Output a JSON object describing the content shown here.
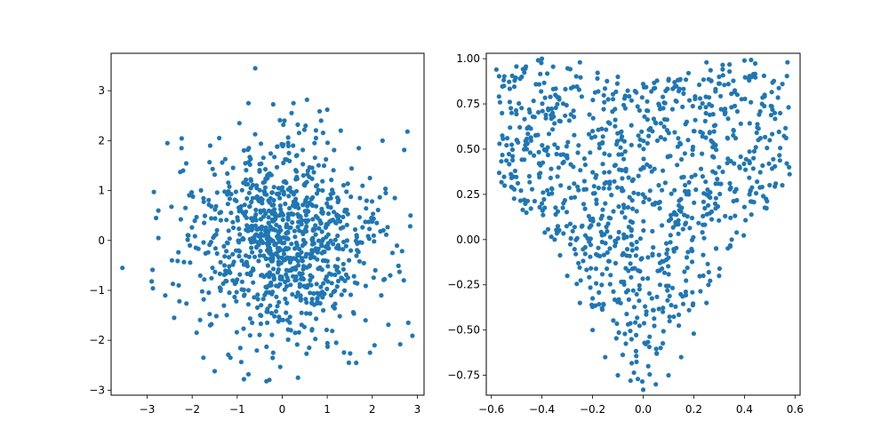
{
  "theme": {
    "marker_color": "#1f77b4",
    "background": "#ffffff"
  },
  "chart_data": [
    {
      "type": "scatter",
      "title": "",
      "xlabel": "",
      "ylabel": "",
      "xlim": [
        -3.8,
        3.15
      ],
      "ylim": [
        -3.1,
        3.75
      ],
      "grid": false,
      "xticks": [
        -3,
        -2,
        -1,
        0,
        1,
        2,
        3
      ],
      "yticks": [
        -3,
        -2,
        -1,
        0,
        1,
        2,
        3
      ],
      "xtick_labels": [
        "−3",
        "−2",
        "−1",
        "0",
        "1",
        "2",
        "3"
      ],
      "ytick_labels": [
        "−3",
        "−2",
        "−1",
        "0",
        "1",
        "2",
        "3"
      ],
      "distribution": "2-D standard normal (independent x and y), about 1000 points",
      "points": [
        [
          -0.6,
          3.45
        ],
        [
          -3.55,
          -0.55
        ],
        [
          -2.9,
          -0.82
        ],
        [
          2.78,
          2.18
        ],
        [
          2.85,
          0.5
        ],
        [
          -2.55,
          1.95
        ],
        [
          2.8,
          -1.65
        ],
        [
          -0.35,
          -2.82
        ],
        [
          0.35,
          -2.75
        ],
        [
          -1.5,
          -2.62
        ],
        [
          -0.85,
          -2.78
        ],
        [
          2.7,
          -0.8
        ],
        [
          2.62,
          -2.08
        ],
        [
          1.48,
          -2.45
        ],
        [
          1.95,
          -2.25
        ],
        [
          -1.9,
          -1.85
        ],
        [
          -2.85,
          0.97
        ],
        [
          -2.8,
          0.45
        ],
        [
          -2.75,
          0.05
        ],
        [
          -2.4,
          -1.55
        ],
        [
          2.05,
          -2.1
        ],
        [
          1.0,
          2.62
        ],
        [
          0.55,
          2.82
        ],
        [
          0.25,
          2.75
        ],
        [
          -0.75,
          2.75
        ],
        [
          -0.95,
          2.35
        ],
        [
          1.3,
          2.2
        ],
        [
          -1.6,
          1.9
        ],
        [
          -2.2,
          1.4
        ],
        [
          2.3,
          0.95
        ],
        [
          2.5,
          0.85
        ],
        [
          2.4,
          -0.7
        ],
        [
          2.2,
          -1.1
        ],
        [
          -2.45,
          -0.4
        ],
        [
          -2.3,
          -0.9
        ],
        [
          -1.75,
          -2.35
        ],
        [
          1.7,
          1.85
        ],
        [
          -0.2,
          -2.25
        ],
        [
          0.6,
          -2.15
        ],
        [
          -1.15,
          -2.35
        ],
        [
          -1.4,
          2.05
        ],
        [
          0.05,
          2.4
        ],
        [
          0.75,
          2.05
        ],
        [
          2.1,
          0.35
        ],
        [
          2.45,
          -0.25
        ],
        [
          -2.05,
          -0.1
        ],
        [
          -2.15,
          0.65
        ],
        [
          1.85,
          -1.6
        ],
        [
          -1.6,
          -1.7
        ],
        [
          1.2,
          -2.05
        ]
      ]
    },
    {
      "type": "scatter",
      "title": "",
      "xlabel": "",
      "ylabel": "",
      "xlim": [
        -0.62,
        0.62
      ],
      "ylim": [
        -0.86,
        1.03
      ],
      "grid": false,
      "xticks": [
        -0.6,
        -0.4,
        -0.2,
        0.0,
        0.2,
        0.4,
        0.6
      ],
      "yticks": [
        -0.75,
        -0.5,
        -0.25,
        0.0,
        0.25,
        0.5,
        0.75,
        1.0
      ],
      "xtick_labels": [
        "−0.6",
        "−0.4",
        "−0.2",
        "0.0",
        "0.2",
        "0.4",
        "0.6"
      ],
      "ytick_labels": [
        "−0.75",
        "−0.50",
        "−0.25",
        "0.00",
        "0.25",
        "0.50",
        "0.75",
        "1.00"
      ],
      "distribution": "uniform in a heart/V-shaped region: top edge near y = 1 with a dip to about 0.85 at x = 0, tapering to a point near (0, -0.83); about 1000 points",
      "points": [
        [
          0.0,
          -0.83
        ],
        [
          -0.58,
          0.94
        ],
        [
          0.57,
          0.98
        ],
        [
          -0.4,
          1.0
        ],
        [
          0.4,
          0.99
        ],
        [
          -0.25,
          0.98
        ],
        [
          0.25,
          0.98
        ],
        [
          -0.1,
          0.9
        ],
        [
          0.1,
          0.88
        ],
        [
          0.0,
          0.86
        ],
        [
          -0.55,
          0.85
        ],
        [
          0.55,
          0.86
        ],
        [
          -0.52,
          0.7
        ],
        [
          0.52,
          0.7
        ],
        [
          -0.5,
          0.55
        ],
        [
          0.5,
          0.55
        ],
        [
          -0.45,
          0.35
        ],
        [
          0.45,
          0.32
        ],
        [
          -0.4,
          0.2
        ],
        [
          0.4,
          0.18
        ],
        [
          -0.35,
          0.0
        ],
        [
          0.35,
          0.0
        ],
        [
          -0.3,
          -0.2
        ],
        [
          0.3,
          -0.2
        ],
        [
          -0.25,
          -0.35
        ],
        [
          0.25,
          -0.35
        ],
        [
          -0.2,
          -0.5
        ],
        [
          0.2,
          -0.52
        ],
        [
          -0.15,
          -0.65
        ],
        [
          0.15,
          -0.65
        ],
        [
          -0.1,
          -0.75
        ],
        [
          0.1,
          -0.75
        ],
        [
          -0.05,
          -0.78
        ],
        [
          0.05,
          -0.8
        ],
        [
          0.02,
          -0.7
        ],
        [
          -0.2,
          0.6
        ],
        [
          0.2,
          0.6
        ],
        [
          0.0,
          0.4
        ],
        [
          -0.3,
          0.45
        ],
        [
          0.3,
          0.4
        ],
        [
          -0.05,
          0.1
        ],
        [
          0.1,
          -0.1
        ],
        [
          -0.15,
          0.2
        ],
        [
          0.18,
          0.25
        ],
        [
          -0.36,
          0.28
        ],
        [
          0.42,
          0.25
        ],
        [
          -0.46,
          0.5
        ],
        [
          0.48,
          0.8
        ],
        [
          -0.48,
          0.9
        ],
        [
          0.3,
          0.9
        ]
      ]
    }
  ]
}
